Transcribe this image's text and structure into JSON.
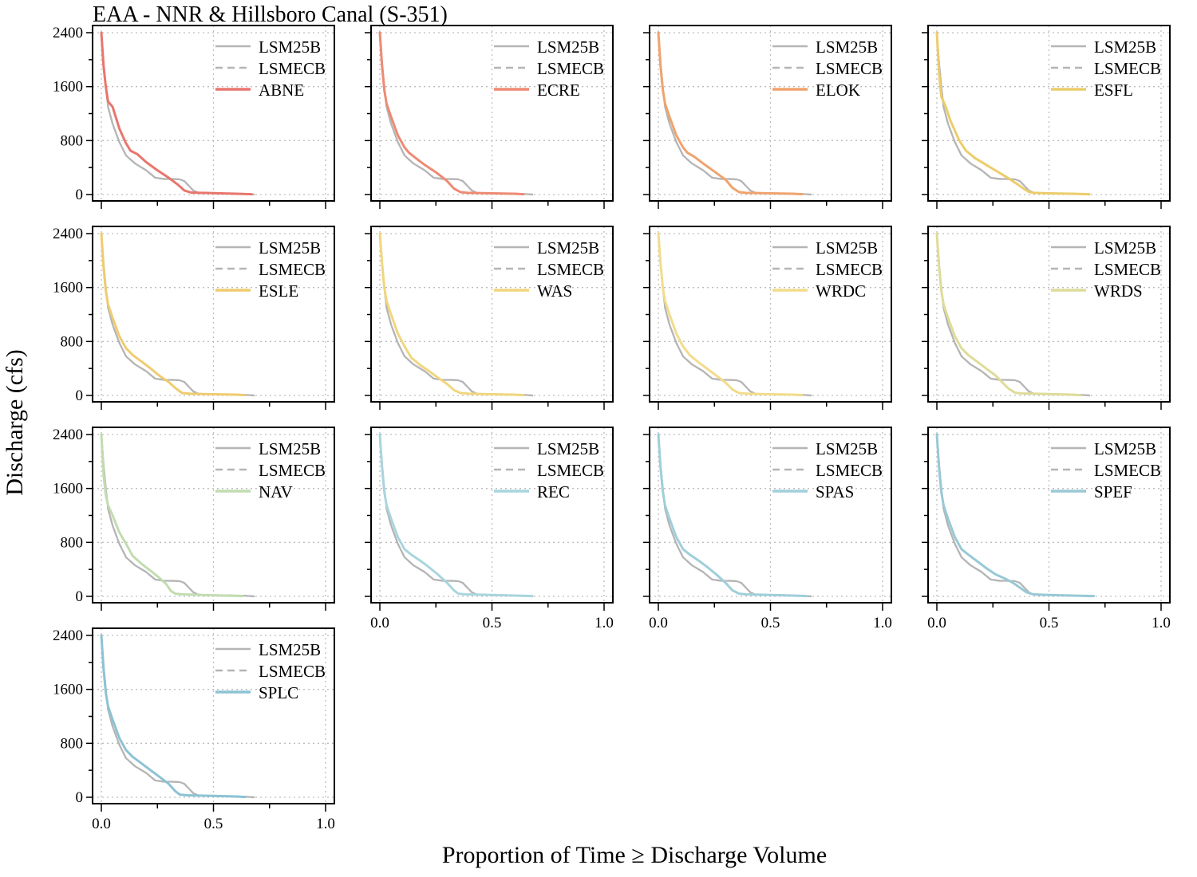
{
  "figure": {
    "title": "EAA - NNR & Hillsboro Canal (S-351)",
    "xlabel": "Proportion of Time ≥ Discharge Volume",
    "ylabel": "Discharge (cfs)"
  },
  "chart_data": {
    "type": "line",
    "grid": true,
    "legend_position": "top-right",
    "xlim": [
      0,
      1.0
    ],
    "ylim": [
      0,
      2400
    ],
    "x_ticks": [
      "0.0",
      "0.5",
      "1.0"
    ],
    "y_ticks": [
      "0",
      "800",
      "1600",
      "2400"
    ],
    "baselines": [
      {
        "name": "LSM25B",
        "style": "solid",
        "color": "#b5b5b5",
        "x": [
          0,
          0.01,
          0.02,
          0.03,
          0.05,
          0.08,
          0.11,
          0.15,
          0.2,
          0.24,
          0.28,
          0.32,
          0.35,
          0.37,
          0.39,
          0.41,
          0.43,
          0.45,
          0.55,
          0.64,
          0.68
        ],
        "y": [
          2400,
          1950,
          1600,
          1300,
          1050,
          780,
          580,
          460,
          360,
          250,
          230,
          230,
          225,
          200,
          130,
          60,
          30,
          20,
          15,
          10,
          0
        ]
      },
      {
        "name": "LSMECB",
        "style": "dashed",
        "color": "#b5b5b5",
        "x": [
          0,
          0.01,
          0.02,
          0.03,
          0.05,
          0.08,
          0.11,
          0.15,
          0.2,
          0.24,
          0.28,
          0.32,
          0.35,
          0.37,
          0.39,
          0.41,
          0.43,
          0.45,
          0.55,
          0.64,
          0.68
        ],
        "y": [
          2400,
          1950,
          1600,
          1300,
          1050,
          780,
          580,
          460,
          360,
          250,
          230,
          230,
          225,
          200,
          130,
          60,
          30,
          20,
          15,
          10,
          0
        ]
      }
    ],
    "panels": [
      {
        "alternative": "ABNE",
        "color": "#e8766d",
        "x": [
          0,
          0.01,
          0.02,
          0.03,
          0.05,
          0.08,
          0.11,
          0.13,
          0.16,
          0.2,
          0.25,
          0.3,
          0.34,
          0.37,
          0.4,
          0.5,
          0.6,
          0.67
        ],
        "y": [
          2400,
          1900,
          1600,
          1380,
          1300,
          980,
          760,
          650,
          600,
          480,
          360,
          250,
          150,
          60,
          30,
          20,
          12,
          5
        ]
      },
      {
        "alternative": "ECRE",
        "color": "#ee8a74",
        "x": [
          0,
          0.01,
          0.02,
          0.03,
          0.05,
          0.08,
          0.11,
          0.13,
          0.16,
          0.2,
          0.25,
          0.3,
          0.33,
          0.36,
          0.39,
          0.5,
          0.6,
          0.64
        ],
        "y": [
          2400,
          1900,
          1550,
          1350,
          1150,
          880,
          700,
          620,
          540,
          440,
          330,
          200,
          90,
          35,
          25,
          18,
          12,
          5
        ]
      },
      {
        "alternative": "ELOK",
        "color": "#f0a36d",
        "x": [
          0,
          0.01,
          0.02,
          0.03,
          0.05,
          0.08,
          0.11,
          0.13,
          0.16,
          0.2,
          0.25,
          0.3,
          0.33,
          0.36,
          0.39,
          0.5,
          0.6,
          0.64
        ],
        "y": [
          2400,
          1900,
          1550,
          1350,
          1150,
          880,
          700,
          620,
          560,
          460,
          340,
          220,
          100,
          35,
          25,
          18,
          12,
          5
        ]
      },
      {
        "alternative": "ESFL",
        "color": "#eccd6b",
        "x": [
          0,
          0.01,
          0.02,
          0.04,
          0.06,
          0.08,
          0.1,
          0.13,
          0.17,
          0.22,
          0.27,
          0.32,
          0.36,
          0.39,
          0.41,
          0.43,
          0.5,
          0.6,
          0.68
        ],
        "y": [
          2400,
          1800,
          1450,
          1300,
          1100,
          950,
          800,
          650,
          540,
          440,
          340,
          240,
          150,
          80,
          40,
          25,
          18,
          12,
          5
        ]
      },
      {
        "alternative": "ESLE",
        "color": "#efcc70",
        "x": [
          0,
          0.01,
          0.02,
          0.03,
          0.05,
          0.08,
          0.11,
          0.14,
          0.18,
          0.22,
          0.26,
          0.3,
          0.33,
          0.36,
          0.4,
          0.5,
          0.6,
          0.64
        ],
        "y": [
          2400,
          1900,
          1550,
          1350,
          1150,
          880,
          700,
          600,
          500,
          400,
          290,
          200,
          110,
          35,
          25,
          18,
          12,
          5
        ]
      },
      {
        "alternative": "WAS",
        "color": "#f1d67e",
        "x": [
          0,
          0.01,
          0.02,
          0.03,
          0.05,
          0.08,
          0.11,
          0.14,
          0.18,
          0.22,
          0.26,
          0.3,
          0.33,
          0.36,
          0.4,
          0.5,
          0.6,
          0.64
        ],
        "y": [
          2400,
          1950,
          1600,
          1400,
          1200,
          920,
          730,
          560,
          450,
          360,
          260,
          170,
          80,
          35,
          25,
          18,
          12,
          5
        ]
      },
      {
        "alternative": "WRDC",
        "color": "#f2dc8c",
        "x": [
          0,
          0.01,
          0.02,
          0.03,
          0.05,
          0.08,
          0.11,
          0.14,
          0.18,
          0.22,
          0.26,
          0.3,
          0.33,
          0.36,
          0.4,
          0.5,
          0.6,
          0.64
        ],
        "y": [
          2400,
          1950,
          1600,
          1400,
          1200,
          920,
          730,
          600,
          490,
          390,
          290,
          190,
          90,
          35,
          25,
          18,
          12,
          5
        ]
      },
      {
        "alternative": "WRDS",
        "color": "#dedc98",
        "x": [
          0,
          0.01,
          0.02,
          0.03,
          0.05,
          0.08,
          0.11,
          0.14,
          0.18,
          0.22,
          0.26,
          0.29,
          0.32,
          0.35,
          0.38,
          0.5,
          0.6,
          0.64
        ],
        "y": [
          2400,
          1900,
          1550,
          1350,
          1150,
          880,
          700,
          600,
          500,
          400,
          300,
          200,
          100,
          40,
          30,
          20,
          12,
          5
        ]
      },
      {
        "alternative": "NAV",
        "color": "#c2dcb0",
        "x": [
          0,
          0.01,
          0.02,
          0.03,
          0.05,
          0.08,
          0.11,
          0.14,
          0.18,
          0.22,
          0.26,
          0.29,
          0.31,
          0.33,
          0.36,
          0.45,
          0.55,
          0.63
        ],
        "y": [
          2400,
          1800,
          1500,
          1350,
          1200,
          950,
          780,
          600,
          480,
          380,
          270,
          180,
          80,
          40,
          30,
          20,
          12,
          5
        ]
      },
      {
        "alternative": "REC",
        "color": "#a9d5de",
        "x": [
          0,
          0.01,
          0.02,
          0.03,
          0.05,
          0.08,
          0.11,
          0.14,
          0.18,
          0.22,
          0.26,
          0.3,
          0.33,
          0.35,
          0.38,
          0.5,
          0.6,
          0.68
        ],
        "y": [
          2400,
          1900,
          1550,
          1350,
          1150,
          880,
          700,
          620,
          530,
          430,
          320,
          200,
          90,
          40,
          30,
          20,
          12,
          5
        ]
      },
      {
        "alternative": "SPAS",
        "color": "#9fcfda",
        "x": [
          0,
          0.01,
          0.02,
          0.03,
          0.05,
          0.08,
          0.11,
          0.14,
          0.18,
          0.22,
          0.26,
          0.3,
          0.33,
          0.36,
          0.39,
          0.5,
          0.6,
          0.66
        ],
        "y": [
          2400,
          1900,
          1550,
          1350,
          1150,
          880,
          700,
          620,
          530,
          430,
          320,
          200,
          90,
          40,
          30,
          20,
          12,
          5
        ]
      },
      {
        "alternative": "SPEF",
        "color": "#98c9d6",
        "x": [
          0,
          0.01,
          0.02,
          0.03,
          0.05,
          0.08,
          0.11,
          0.14,
          0.18,
          0.22,
          0.26,
          0.3,
          0.34,
          0.37,
          0.4,
          0.43,
          0.5,
          0.6,
          0.7
        ],
        "y": [
          2400,
          1900,
          1550,
          1350,
          1150,
          880,
          700,
          620,
          520,
          420,
          330,
          270,
          200,
          130,
          60,
          30,
          20,
          12,
          5
        ]
      },
      {
        "alternative": "SPLC",
        "color": "#8cc3d4",
        "x": [
          0,
          0.01,
          0.02,
          0.03,
          0.05,
          0.08,
          0.11,
          0.14,
          0.18,
          0.22,
          0.26,
          0.3,
          0.33,
          0.35,
          0.38,
          0.5,
          0.6,
          0.64
        ],
        "y": [
          2400,
          1900,
          1550,
          1350,
          1150,
          880,
          700,
          600,
          500,
          400,
          300,
          200,
          90,
          40,
          30,
          20,
          12,
          5
        ]
      }
    ]
  }
}
